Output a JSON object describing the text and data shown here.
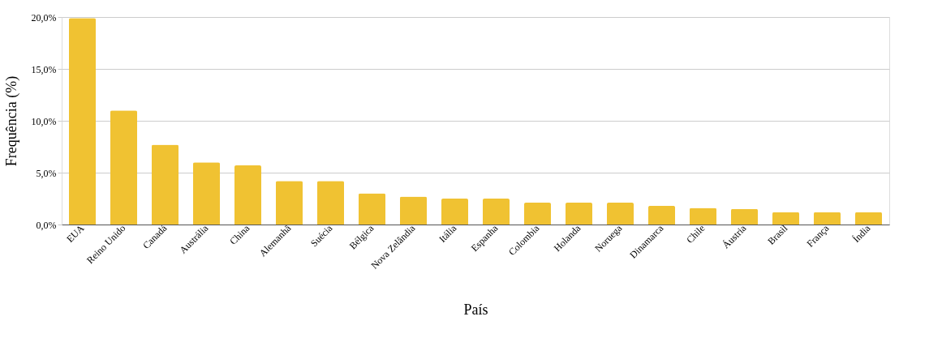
{
  "chart_data": {
    "type": "bar",
    "xlabel": "País",
    "ylabel": "Frequência (%)",
    "categories": [
      "EUA",
      "Reino Unido",
      "Canadá",
      "Austrália",
      "China",
      "Alemanhã",
      "Suécia",
      "Bélgica",
      "Nova Zelândia",
      "Itália",
      "Espanha",
      "Colombia",
      "Holanda",
      "Noruega",
      "Dinamarca",
      "Chile",
      "Áustria",
      "Brasil",
      "França",
      "Índia"
    ],
    "values": [
      19.9,
      11.0,
      7.7,
      6.0,
      5.7,
      4.2,
      4.2,
      3.0,
      2.7,
      2.5,
      2.5,
      2.1,
      2.1,
      2.1,
      1.8,
      1.6,
      1.5,
      1.2,
      1.2,
      1.2
    ],
    "color": "#f0c232",
    "ylim": [
      0,
      20
    ],
    "yticks": [
      {
        "value": 0,
        "label": "0,0%"
      },
      {
        "value": 5,
        "label": "5,0%"
      },
      {
        "value": 10,
        "label": "10,0%"
      },
      {
        "value": 15,
        "label": "15,0%"
      },
      {
        "value": 20,
        "label": "20,0%"
      }
    ],
    "grid": "y"
  }
}
